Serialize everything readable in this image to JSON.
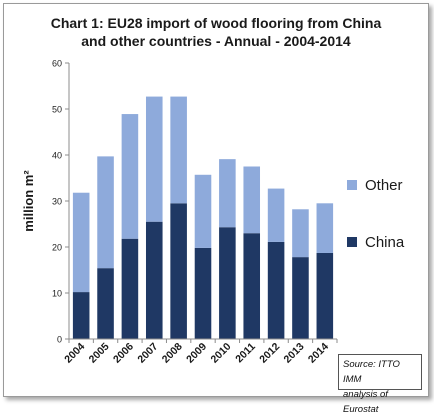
{
  "chart_data": {
    "type": "bar",
    "stacked": true,
    "title_line1": "Chart 1: EU28 import of wood flooring from China",
    "title_line2": "and other countries - Annual - 2004-2014",
    "ylabel": "million m²",
    "xlabel": "",
    "ylim": [
      0,
      60
    ],
    "yticks": [
      0,
      10,
      20,
      30,
      40,
      50,
      60
    ],
    "grid": false,
    "legend_position": "right",
    "categories": [
      "2004",
      "2005",
      "2006",
      "2007",
      "2008",
      "2009",
      "2010",
      "2011",
      "2012",
      "2013",
      "2014"
    ],
    "series": [
      {
        "name": "China",
        "color": "#1f3864",
        "values": [
          10.2,
          15.4,
          21.8,
          25.5,
          29.5,
          19.8,
          24.3,
          23.0,
          21.1,
          17.8,
          18.7
        ]
      },
      {
        "name": "Other",
        "color": "#8eaadb",
        "values": [
          21.6,
          24.3,
          27.1,
          27.2,
          23.2,
          15.9,
          14.8,
          14.5,
          11.6,
          10.4,
          10.8
        ]
      }
    ],
    "source_line1": "Source: ITTO IMM",
    "source_line2": "analysis of Eurostat"
  }
}
